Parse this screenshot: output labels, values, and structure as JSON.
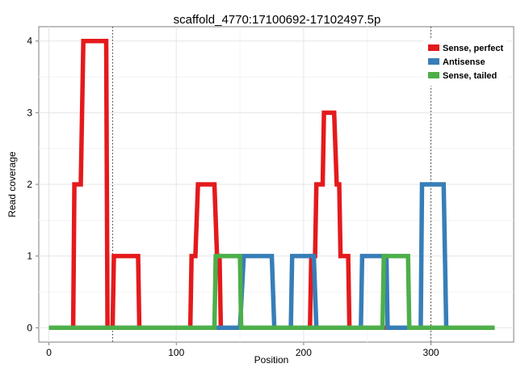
{
  "chart_data": {
    "type": "line",
    "title": "scaffold_4770:17100692-17102497.5p",
    "xlabel": "Position",
    "ylabel": "Read coverage",
    "xlim": [
      -8,
      365
    ],
    "ylim": [
      -0.2,
      4.2
    ],
    "x_ticks": [
      0,
      100,
      200,
      300
    ],
    "y_ticks": [
      0,
      1,
      2,
      3,
      4
    ],
    "grid": true,
    "legend_position": "top-right",
    "vlines": [
      50,
      300
    ],
    "series": [
      {
        "name": "Sense, perfect",
        "color": "#e41a1c",
        "points": [
          [
            0,
            0
          ],
          [
            19,
            0
          ],
          [
            20,
            2
          ],
          [
            25,
            2
          ],
          [
            27,
            4
          ],
          [
            45,
            4
          ],
          [
            46,
            0
          ],
          [
            50,
            0
          ],
          [
            51,
            1
          ],
          [
            70,
            1
          ],
          [
            71,
            0
          ],
          [
            111,
            0
          ],
          [
            112,
            1
          ],
          [
            115,
            1
          ],
          [
            117,
            2
          ],
          [
            130,
            2
          ],
          [
            132,
            1
          ],
          [
            134,
            1
          ],
          [
            135,
            0
          ],
          [
            205,
            0
          ],
          [
            206,
            1
          ],
          [
            209,
            1
          ],
          [
            210,
            2
          ],
          [
            215,
            2
          ],
          [
            216,
            3
          ],
          [
            224,
            3
          ],
          [
            226,
            2
          ],
          [
            228,
            2
          ],
          [
            229,
            1
          ],
          [
            235,
            1
          ],
          [
            236,
            0
          ],
          [
            350,
            0
          ]
        ]
      },
      {
        "name": "Antisense",
        "color": "#377eb8",
        "points": [
          [
            0,
            0
          ],
          [
            150,
            0
          ],
          [
            153,
            1
          ],
          [
            175,
            1
          ],
          [
            177,
            0
          ],
          [
            190,
            0
          ],
          [
            191,
            1
          ],
          [
            208,
            1
          ],
          [
            210,
            0
          ],
          [
            245,
            0
          ],
          [
            246,
            1
          ],
          [
            265,
            1
          ],
          [
            266,
            0
          ],
          [
            292,
            0
          ],
          [
            293,
            2
          ],
          [
            310,
            2
          ],
          [
            312,
            0
          ],
          [
            350,
            0
          ]
        ]
      },
      {
        "name": "Sense, tailed",
        "color": "#4daf4a",
        "points": [
          [
            0,
            0
          ],
          [
            130,
            0
          ],
          [
            131,
            1
          ],
          [
            150,
            1
          ],
          [
            151,
            0
          ],
          [
            262,
            0
          ],
          [
            263,
            1
          ],
          [
            282,
            1
          ],
          [
            283,
            0
          ],
          [
            350,
            0
          ]
        ]
      }
    ]
  }
}
